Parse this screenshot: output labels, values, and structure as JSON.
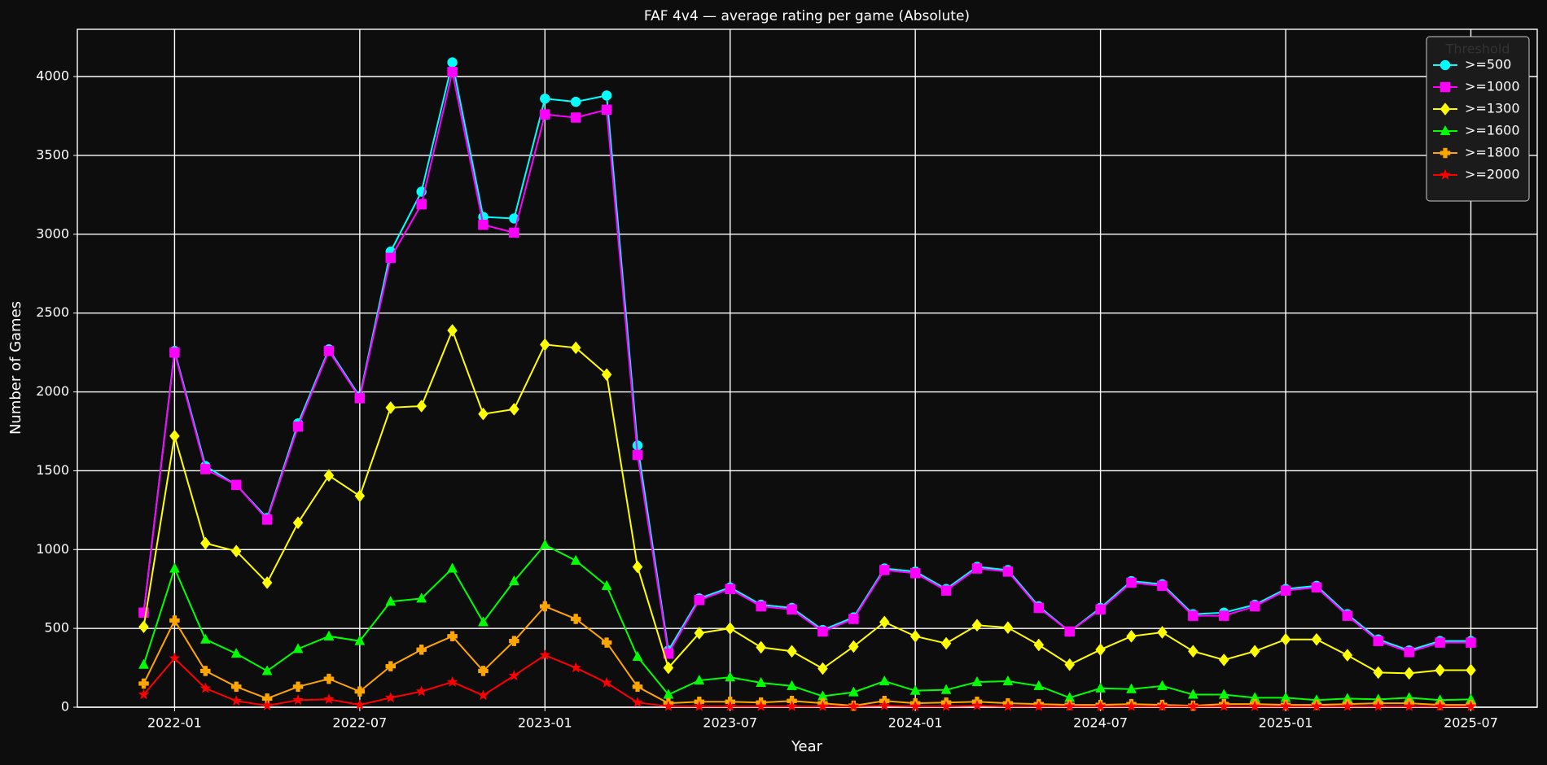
{
  "chart_data": {
    "type": "line",
    "title": "FAF 4v4 — average rating per game (Absolute)",
    "x_label": "Year",
    "y_label": "Number of Games",
    "x": [
      "2021-12",
      "2022-01",
      "2022-02",
      "2022-03",
      "2022-04",
      "2022-05",
      "2022-06",
      "2022-07",
      "2022-08",
      "2022-09",
      "2022-10",
      "2022-11",
      "2022-12",
      "2023-01",
      "2023-02",
      "2023-03",
      "2023-04",
      "2023-05",
      "2023-06",
      "2023-07",
      "2023-08",
      "2023-09",
      "2023-10",
      "2023-11",
      "2023-12",
      "2024-01",
      "2024-02",
      "2024-03",
      "2024-04",
      "2024-05",
      "2024-06",
      "2024-07",
      "2024-08",
      "2024-09",
      "2024-10",
      "2024-11",
      "2024-12",
      "2025-01",
      "2025-02",
      "2025-03",
      "2025-04",
      "2025-05",
      "2025-06",
      "2025-07"
    ],
    "xticks": [
      "2022-01",
      "2022-07",
      "2023-01",
      "2023-07",
      "2024-01",
      "2024-07",
      "2025-01",
      "2025-07"
    ],
    "ylim": [
      0,
      4300
    ],
    "yticks": [
      0,
      500,
      1000,
      1500,
      2000,
      2500,
      3000,
      3500,
      4000
    ],
    "grid": true,
    "legend_title": "Threshold",
    "legend_corner": "upper right",
    "series": [
      {
        "name": ">=500",
        "color": "#00ffff",
        "marker": "circle",
        "values": [
          600,
          2260,
          1530,
          1410,
          1200,
          1800,
          2270,
          1970,
          2890,
          3270,
          4090,
          3110,
          3100,
          3860,
          3840,
          3880,
          1660,
          360,
          690,
          760,
          650,
          630,
          490,
          570,
          880,
          860,
          750,
          890,
          870,
          640,
          480,
          630,
          800,
          780,
          590,
          600,
          650,
          750,
          770,
          590,
          430,
          360,
          420,
          420
        ]
      },
      {
        "name": ">=1000",
        "color": "#ff00ff",
        "marker": "square",
        "values": [
          600,
          2250,
          1510,
          1410,
          1190,
          1780,
          2260,
          1960,
          2850,
          3190,
          4030,
          3060,
          3010,
          3760,
          3740,
          3790,
          1600,
          340,
          680,
          750,
          640,
          620,
          480,
          560,
          870,
          850,
          740,
          880,
          860,
          630,
          480,
          620,
          790,
          770,
          580,
          580,
          640,
          740,
          760,
          580,
          420,
          350,
          410,
          410
        ]
      },
      {
        "name": ">=1300",
        "color": "#ffff00",
        "marker": "diamond",
        "values": [
          510,
          1720,
          1040,
          990,
          790,
          1170,
          1470,
          1340,
          1900,
          1910,
          2390,
          1860,
          1890,
          2300,
          2280,
          2110,
          890,
          250,
          470,
          500,
          380,
          355,
          245,
          385,
          540,
          450,
          405,
          520,
          505,
          395,
          270,
          365,
          450,
          475,
          355,
          300,
          355,
          430,
          430,
          330,
          220,
          215,
          235,
          235
        ]
      },
      {
        "name": ">=1600",
        "color": "#00ff00",
        "marker": "triangle",
        "values": [
          270,
          880,
          430,
          340,
          230,
          370,
          450,
          420,
          670,
          690,
          880,
          540,
          800,
          1030,
          930,
          770,
          320,
          80,
          170,
          190,
          155,
          135,
          70,
          95,
          165,
          105,
          110,
          160,
          165,
          135,
          60,
          120,
          115,
          135,
          80,
          80,
          60,
          60,
          45,
          55,
          50,
          60,
          45,
          50
        ]
      },
      {
        "name": ">=1800",
        "color": "#ffa500",
        "marker": "plus",
        "values": [
          150,
          550,
          230,
          130,
          55,
          130,
          180,
          100,
          260,
          365,
          450,
          230,
          420,
          640,
          560,
          410,
          130,
          25,
          35,
          35,
          30,
          40,
          25,
          10,
          40,
          25,
          30,
          35,
          25,
          20,
          15,
          15,
          20,
          15,
          10,
          20,
          20,
          15,
          15,
          20,
          25,
          25,
          15,
          15
        ]
      },
      {
        "name": ">=2000",
        "color": "#ff0000",
        "marker": "star",
        "values": [
          80,
          310,
          120,
          40,
          10,
          45,
          50,
          15,
          60,
          100,
          160,
          75,
          200,
          330,
          250,
          155,
          30,
          5,
          5,
          5,
          5,
          5,
          5,
          5,
          10,
          5,
          5,
          10,
          5,
          5,
          5,
          5,
          5,
          5,
          5,
          5,
          5,
          5,
          5,
          5,
          5,
          5,
          5,
          5
        ]
      }
    ]
  }
}
